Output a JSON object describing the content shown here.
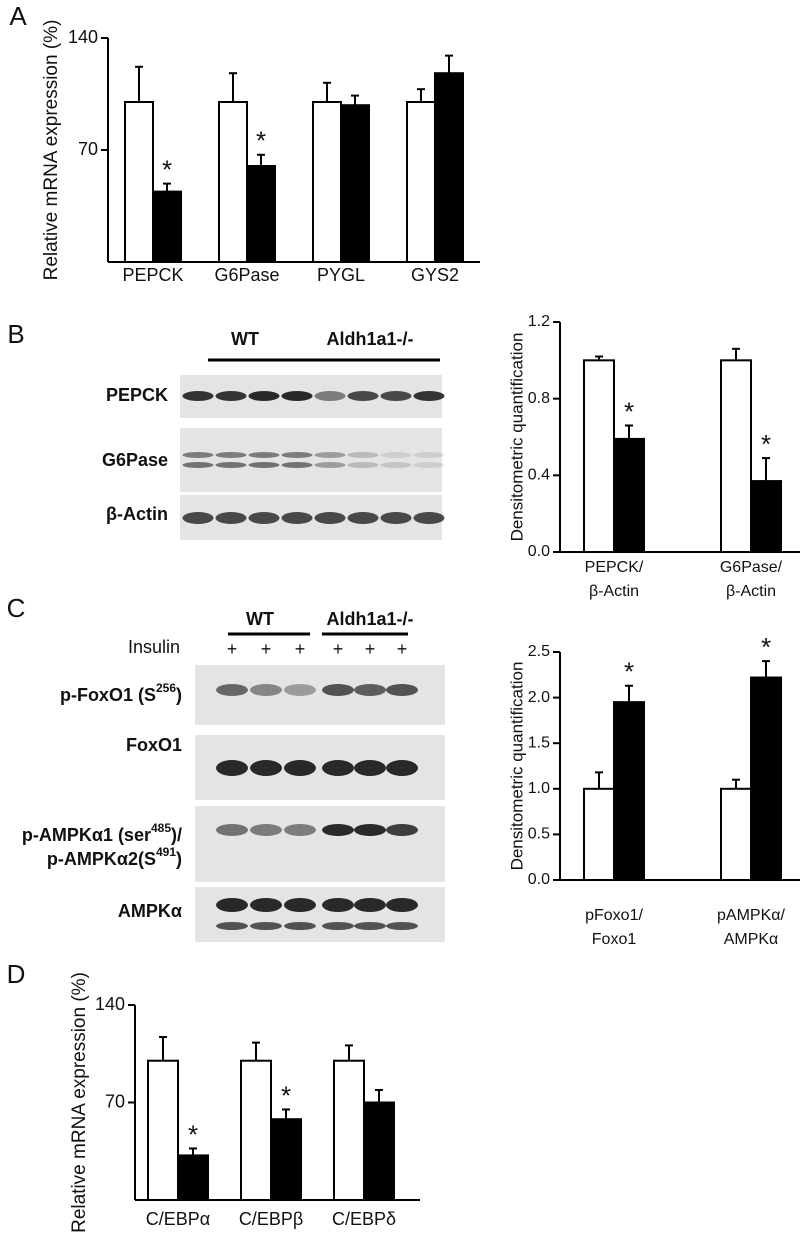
{
  "figure": {
    "panels": [
      "A",
      "B",
      "C",
      "D"
    ]
  },
  "chart_data": [
    {
      "type": "bar",
      "y_label": "Relative mRNA expression (%)",
      "categories": [
        "PEPCK",
        "G6Pase",
        "PYGL",
        "GYS2"
      ],
      "series": [
        {
          "color": "#ffffff",
          "values": [
            100,
            100,
            100,
            100
          ],
          "errors": [
            22,
            18,
            12,
            8
          ]
        },
        {
          "color": "#000000",
          "values": [
            44,
            60,
            98,
            118
          ],
          "errors": [
            5,
            7,
            6,
            11
          ]
        }
      ],
      "ylim": [
        0,
        140
      ],
      "yticks": [
        70,
        140
      ],
      "annotations": [
        {
          "text": "*",
          "category": 0,
          "series": 1
        },
        {
          "text": "*",
          "category": 1,
          "series": 1
        }
      ]
    },
    {
      "type": "bar",
      "y_label": "Densitometric quantification",
      "categories": [
        [
          "PEPCK/",
          "β-Actin"
        ],
        [
          "G6Pase/",
          "β-Actin"
        ]
      ],
      "series": [
        {
          "color": "#ffffff",
          "values": [
            1.0,
            1.0
          ],
          "errors": [
            0.02,
            0.06
          ]
        },
        {
          "color": "#000000",
          "values": [
            0.59,
            0.37
          ],
          "errors": [
            0.07,
            0.12
          ]
        }
      ],
      "ylim": [
        0,
        1.2
      ],
      "yticks": [
        {
          "value": 0,
          "label": "0.0"
        },
        0.4,
        0.8,
        1.2
      ],
      "annotations": [
        {
          "text": "*",
          "category": 0,
          "series": 1
        },
        {
          "text": "*",
          "category": 1,
          "series": 1
        }
      ]
    },
    {
      "type": "bar",
      "y_label": "Densitometric quantification",
      "categories": [
        [
          "pFoxo1/",
          "Foxo1"
        ],
        [
          "pAMPKα/",
          "AMPKα"
        ]
      ],
      "series": [
        {
          "color": "#ffffff",
          "values": [
            1.0,
            1.0
          ],
          "errors": [
            0.18,
            0.1
          ]
        },
        {
          "color": "#000000",
          "values": [
            1.95,
            2.22
          ],
          "errors": [
            0.18,
            0.18
          ]
        }
      ],
      "ylim": [
        0,
        2.5
      ],
      "yticks": [
        {
          "value": 0,
          "label": "0.0"
        },
        0.5,
        {
          "value": 1,
          "label": "1.0"
        },
        1.5,
        {
          "value": 2,
          "label": "2.0"
        },
        2.5
      ],
      "annotations": [
        {
          "text": "*",
          "category": 0,
          "series": 1
        },
        {
          "text": "*",
          "category": 1,
          "series": 1
        }
      ]
    },
    {
      "type": "bar",
      "y_label": "Relative mRNA expression (%)",
      "categories": [
        "C/EBPα",
        "C/EBPβ",
        "C/EBPδ"
      ],
      "series": [
        {
          "color": "#ffffff",
          "values": [
            100,
            100,
            100
          ],
          "errors": [
            17,
            13,
            11
          ]
        },
        {
          "color": "#000000",
          "values": [
            32,
            58,
            70
          ],
          "errors": [
            5,
            7,
            9
          ]
        }
      ],
      "ylim": [
        0,
        140
      ],
      "yticks": [
        70,
        140
      ],
      "annotations": [
        {
          "text": "*",
          "category": 0,
          "series": 1
        },
        {
          "text": "*",
          "category": 1,
          "series": 1
        }
      ]
    }
  ],
  "blots": {
    "B": {
      "groups": [
        "WT",
        "Aldh1a1-/-"
      ],
      "rows": [
        "PEPCK",
        "G6Pase",
        "β-Actin"
      ]
    },
    "C": {
      "groups": [
        "WT",
        "Aldh1a1-/-"
      ],
      "treatment": "Insulin",
      "marks": [
        "+",
        "+",
        "+",
        "+",
        "+",
        "+"
      ],
      "rows": [
        {
          "lines": [
            [
              "p-FoxO1 (S",
              "256",
              ")"
            ]
          ]
        },
        {
          "lines": [
            [
              "FoxO1"
            ]
          ]
        },
        {
          "lines": [
            [
              "p-AMPKα1 (ser",
              "485",
              ")/"
            ],
            [
              "p-AMPKα2(S",
              "491",
              ")"
            ]
          ]
        },
        {
          "lines": [
            [
              "AMPKα"
            ]
          ]
        }
      ]
    }
  }
}
